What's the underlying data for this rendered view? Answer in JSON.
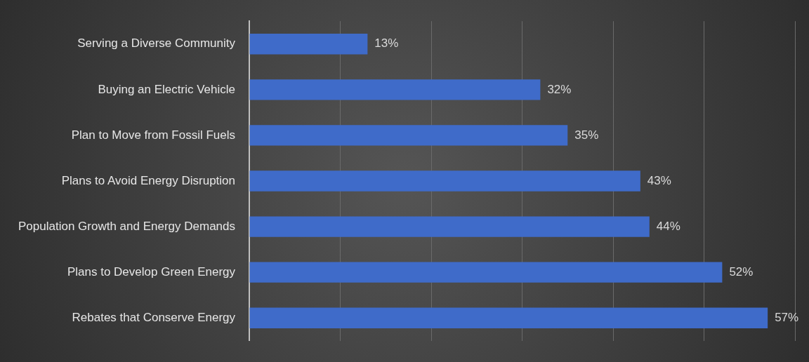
{
  "chart_data": {
    "type": "bar",
    "orientation": "horizontal",
    "categories": [
      "Serving a Diverse Community",
      "Buying an Electric Vehicle",
      "Plan to Move from Fossil Fuels",
      "Plans to Avoid Energy Disruption",
      "Population Growth and Energy Demands",
      "Plans to Develop Green Energy",
      "Rebates that Conserve Energy"
    ],
    "values": [
      13,
      32,
      35,
      43,
      44,
      52,
      57
    ],
    "value_labels": [
      "13%",
      "32%",
      "35%",
      "43%",
      "44%",
      "52%",
      "57%"
    ],
    "color": "#3f6bc9",
    "xlim": [
      0,
      60
    ],
    "xticks": [
      0,
      10,
      20,
      30,
      40,
      50,
      60
    ],
    "grid": "x",
    "tick_labels": "y"
  }
}
